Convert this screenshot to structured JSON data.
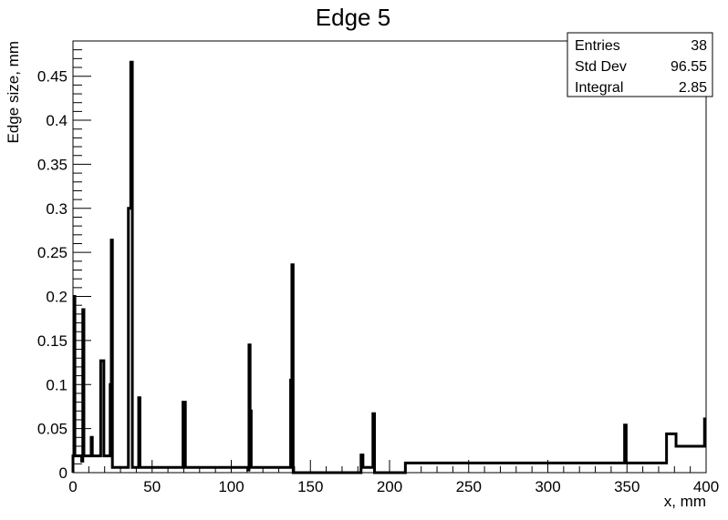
{
  "chart_data": {
    "type": "histogram",
    "title": "Edge 5",
    "xlabel": "x, mm",
    "ylabel": "Edge size, mm",
    "xlim": [
      0,
      400
    ],
    "ylim": [
      0,
      0.49
    ],
    "x_ticks": [
      0,
      50,
      100,
      150,
      200,
      250,
      300,
      350,
      400
    ],
    "x_tick_labels": [
      "0",
      "50",
      "100",
      "150",
      "200",
      "250",
      "300",
      "350",
      "400"
    ],
    "y_ticks": [
      0,
      0.05,
      0.1,
      0.15,
      0.2,
      0.25,
      0.3,
      0.35,
      0.4,
      0.45
    ],
    "y_tick_labels": [
      "0",
      "0.05",
      "0.1",
      "0.15",
      "0.2",
      "0.25",
      "0.3",
      "0.35",
      "0.4",
      "0.45"
    ],
    "grid": false,
    "series": [
      {
        "points": [
          [
            0,
            0.019
          ],
          [
            0.6,
            0.2
          ],
          [
            1.2,
            0.019
          ],
          [
            5.5,
            0.013
          ],
          [
            6.2,
            0.185
          ],
          [
            6.9,
            0.019
          ],
          [
            11.5,
            0.04
          ],
          [
            12.2,
            0.019
          ],
          [
            17.5,
            0.127
          ],
          [
            19.5,
            0.019
          ],
          [
            23.5,
            0.1
          ],
          [
            24.2,
            0.264
          ],
          [
            24.9,
            0.006
          ],
          [
            35.0,
            0.3
          ],
          [
            36.5,
            0.466
          ],
          [
            37.5,
            0.006
          ],
          [
            41.5,
            0.085
          ],
          [
            42.3,
            0.006
          ],
          [
            69.5,
            0.08
          ],
          [
            71.0,
            0.006
          ],
          [
            110.5,
            0.003
          ],
          [
            111.2,
            0.145
          ],
          [
            111.9,
            0.07
          ],
          [
            112.6,
            0.006
          ],
          [
            137.5,
            0.105
          ],
          [
            138.3,
            0.236
          ],
          [
            139.1,
            0.0
          ],
          [
            182.0,
            0.02
          ],
          [
            183.2,
            0.006
          ],
          [
            189.5,
            0.067
          ],
          [
            190.5,
            0.0
          ],
          [
            210.0,
            0.011
          ],
          [
            348.5,
            0.054
          ],
          [
            349.5,
            0.011
          ],
          [
            375.0,
            0.044
          ],
          [
            381.0,
            0.03
          ],
          [
            399.0,
            0.061
          ],
          [
            400.0,
            0.061
          ]
        ]
      }
    ]
  },
  "stats_box": {
    "rows": [
      {
        "label": "Entries",
        "value": "38"
      },
      {
        "label": "Std Dev",
        "value": "96.55"
      },
      {
        "label": "Integral",
        "value": "2.85"
      }
    ]
  }
}
